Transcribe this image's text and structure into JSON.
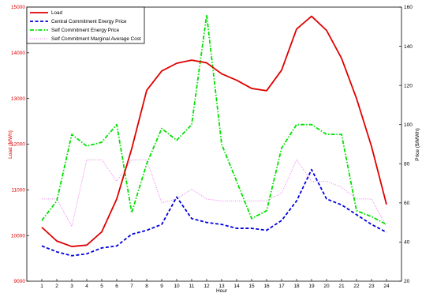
{
  "chart_data": {
    "type": "line",
    "title": "",
    "xlabel": "Hour",
    "ylabel_left": "Load (MWh)",
    "ylabel_right": "Price ($/MWh)",
    "x": [
      1,
      2,
      3,
      4,
      5,
      6,
      7,
      8,
      9,
      10,
      11,
      12,
      13,
      14,
      15,
      16,
      17,
      18,
      19,
      20,
      21,
      22,
      23,
      24
    ],
    "xlim": [
      0,
      25
    ],
    "ylim_left": [
      9000,
      15000
    ],
    "ylim_right": [
      20,
      160
    ],
    "yticks_left": [
      9000,
      10000,
      11000,
      12000,
      13000,
      14000,
      15000
    ],
    "yticks_right": [
      20,
      40,
      60,
      80,
      100,
      120,
      140,
      160
    ],
    "grid": false,
    "legend_position": "top-left",
    "series": [
      {
        "name": "Load",
        "axis": "left",
        "color": "#e00000",
        "style": "solid",
        "values": [
          10180,
          9880,
          9760,
          9790,
          10080,
          10800,
          11900,
          13180,
          13600,
          13770,
          13840,
          13780,
          13540,
          13400,
          13220,
          13170,
          13620,
          14520,
          14800,
          14490,
          13880,
          13000,
          11950,
          10680
        ]
      },
      {
        "name": "Central Commitment Energy Price",
        "axis": "right",
        "color": "#0000e0",
        "style": "dashed",
        "values": [
          38,
          35,
          33,
          34,
          37,
          38,
          44,
          46,
          49,
          63,
          52,
          50,
          49,
          47,
          47,
          46,
          51,
          61,
          77,
          62,
          59,
          54,
          49,
          45
        ]
      },
      {
        "name": "Self Commitment Energy Price",
        "axis": "right",
        "color": "#00e000",
        "style": "dashdot",
        "values": [
          51,
          61,
          95,
          89,
          91,
          100,
          55,
          80,
          98,
          92,
          100,
          156,
          90,
          71,
          52,
          56,
          88,
          100,
          100,
          95,
          95,
          56,
          53,
          49
        ]
      },
      {
        "name": "Self Commitment Marginal Average Cost",
        "axis": "right",
        "color": "#ee77ee",
        "style": "dotted",
        "values": [
          62,
          62,
          48,
          82,
          82,
          71,
          82,
          82,
          60,
          62,
          67,
          62,
          61,
          61,
          61,
          61,
          65,
          82,
          71,
          71,
          68,
          62,
          62,
          48
        ]
      }
    ]
  }
}
